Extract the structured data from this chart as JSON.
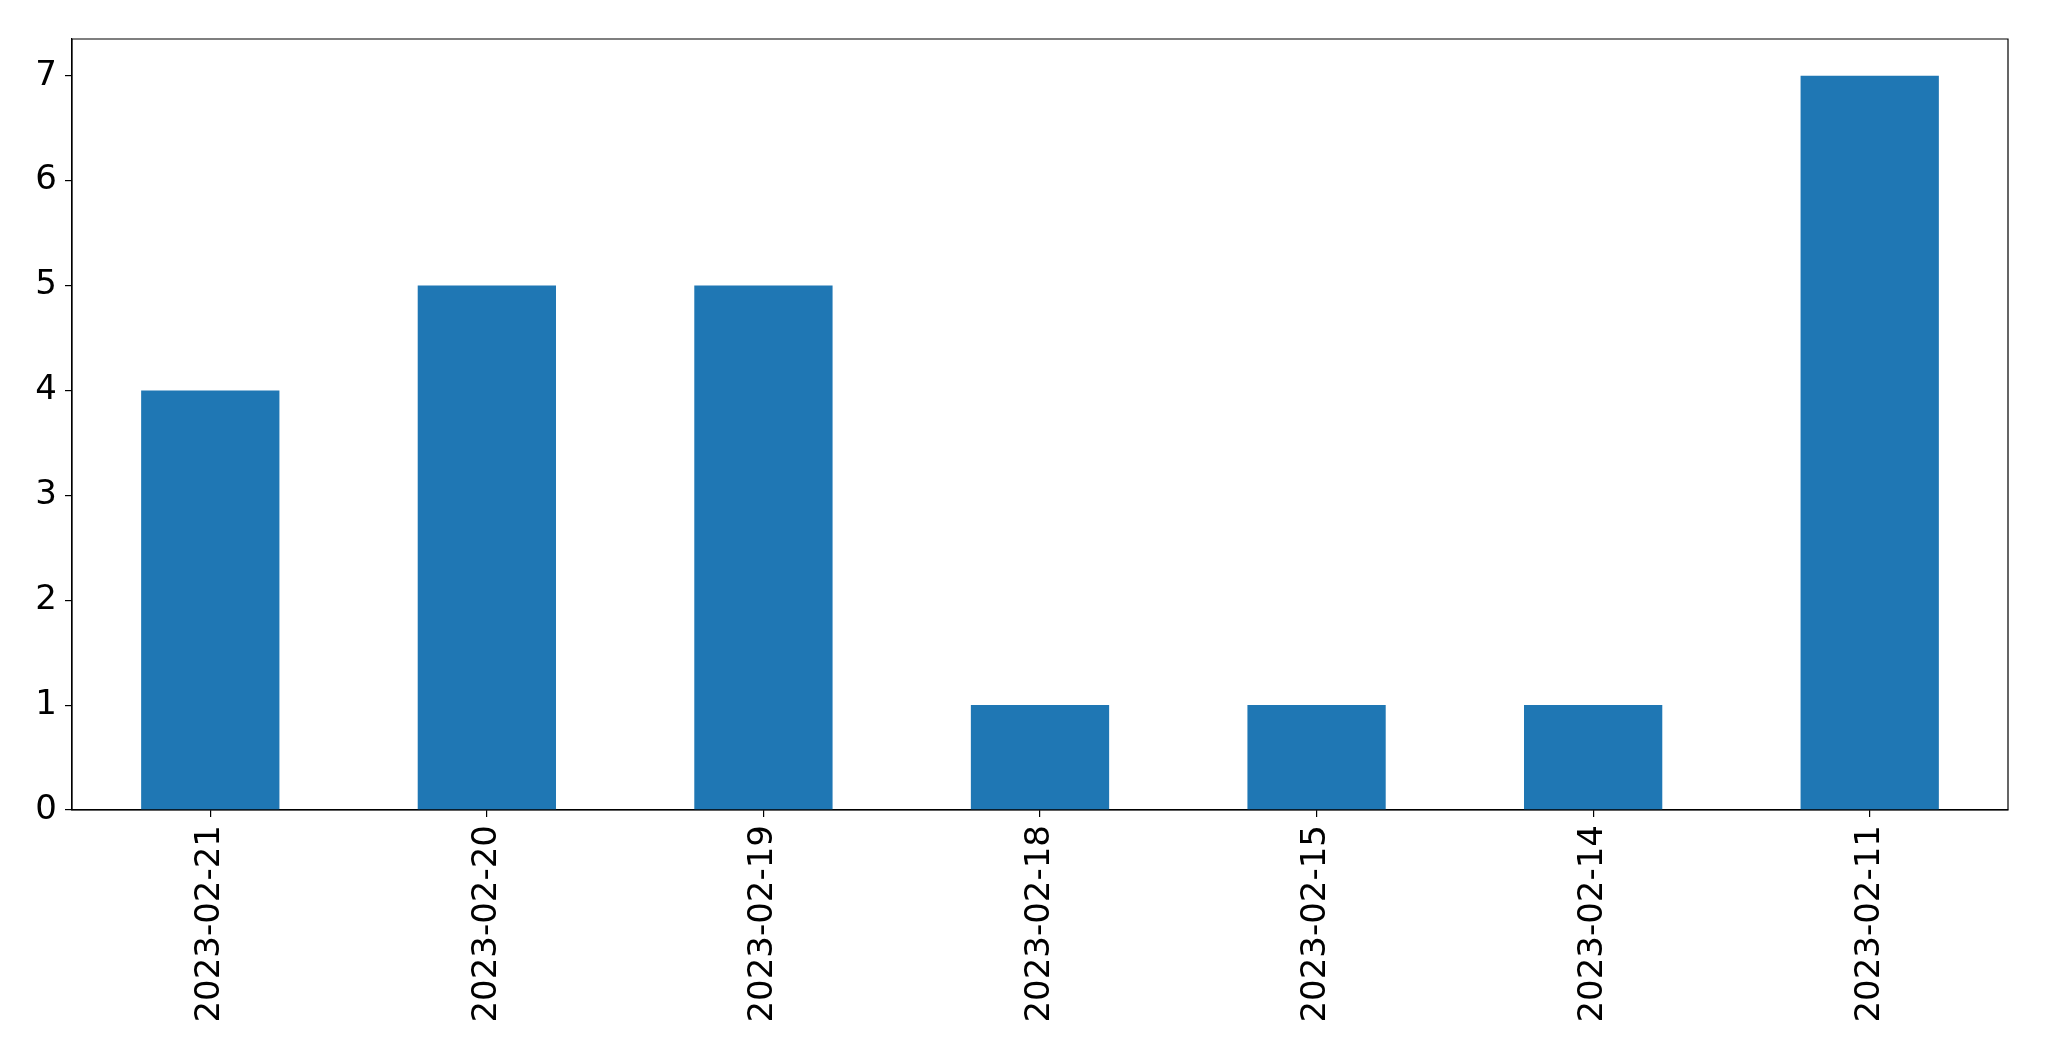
{
  "chart_data": {
    "type": "bar",
    "categories": [
      "2023-02-21",
      "2023-02-20",
      "2023-02-19",
      "2023-02-18",
      "2023-02-15",
      "2023-02-14",
      "2023-02-11"
    ],
    "values": [
      4,
      5,
      5,
      1,
      1,
      1,
      7
    ],
    "color": "#1f77b4",
    "ylim": [
      0,
      7.35
    ],
    "yticks": [
      0,
      1,
      2,
      3,
      4,
      5,
      6,
      7
    ]
  }
}
